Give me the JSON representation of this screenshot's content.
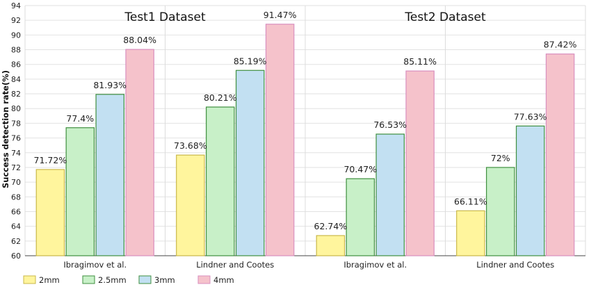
{
  "chart_data": {
    "type": "bar",
    "ylabel": "Success detection rate(%)",
    "ylim": [
      60,
      94
    ],
    "yticks": [
      60,
      62,
      64,
      66,
      68,
      70,
      72,
      74,
      76,
      78,
      80,
      82,
      84,
      86,
      88,
      90,
      92,
      94
    ],
    "grid": true,
    "legend_position": "bottom-left",
    "groups": [
      {
        "title": "Test1 Dataset",
        "categories": [
          {
            "label": "Ibragimov et al.",
            "values": [
              71.72,
              77.4,
              81.93,
              88.04
            ],
            "labels": [
              "71.72%",
              "77.4%",
              "81.93%",
              "88.04%"
            ]
          },
          {
            "label": "Lindner and Cootes",
            "values": [
              73.68,
              80.21,
              85.19,
              91.47
            ],
            "labels": [
              "73.68%",
              "80.21%",
              "85.19%",
              "91.47%"
            ]
          }
        ]
      },
      {
        "title": "Test2 Dataset",
        "categories": [
          {
            "label": "Ibragimov et al.",
            "values": [
              62.74,
              70.47,
              76.53,
              85.11
            ],
            "labels": [
              "62.74%",
              "70.47%",
              "76.53%",
              "85.11%"
            ]
          },
          {
            "label": "Lindner and Cootes",
            "values": [
              66.11,
              72,
              77.63,
              87.42
            ],
            "labels": [
              "66.11%",
              "72%",
              "77.63%",
              "87.42%"
            ]
          }
        ]
      }
    ],
    "series": [
      {
        "name": "2mm",
        "color": "#fff59d",
        "stroke": "#c9b84a"
      },
      {
        "name": "2.5mm",
        "color": "#c8f0c8",
        "stroke": "#3f8f3f"
      },
      {
        "name": "3mm",
        "color": "#c2e0f2",
        "stroke": "#3f8f3f"
      },
      {
        "name": "4mm",
        "color": "#f5c2cb",
        "stroke": "#d98fbf"
      }
    ]
  }
}
